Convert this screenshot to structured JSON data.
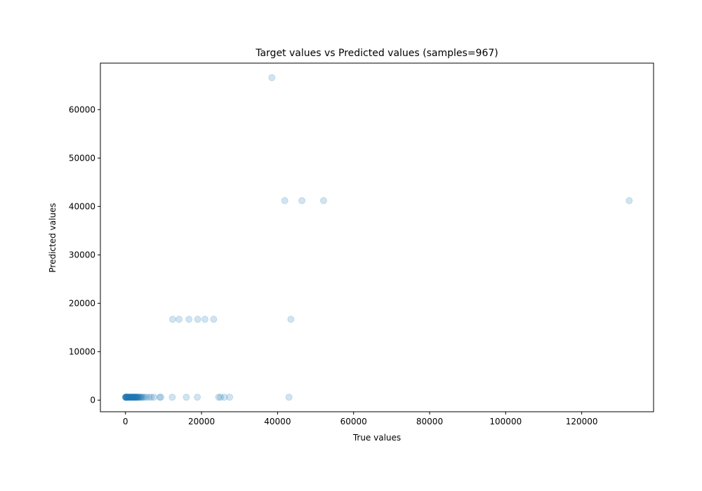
{
  "chart_data": {
    "type": "scatter",
    "title": "Target values vs Predicted values (samples=967)",
    "xlabel": "True values",
    "ylabel": "Predicted values",
    "xlim": [
      -6600,
      138900
    ],
    "ylim": [
      -2400,
      69600
    ],
    "xticks": [
      0,
      20000,
      40000,
      60000,
      80000,
      100000,
      120000
    ],
    "xtick_labels": [
      "0",
      "20000",
      "40000",
      "60000",
      "80000",
      "100000",
      "120000"
    ],
    "yticks": [
      0,
      10000,
      20000,
      30000,
      40000,
      50000,
      60000
    ],
    "ytick_labels": [
      "0",
      "10000",
      "20000",
      "30000",
      "40000",
      "50000",
      "60000"
    ],
    "grid": false,
    "marker_color": "#1f77b4",
    "marker_alpha": 0.2,
    "series": [
      {
        "x": [
          0,
          40,
          80,
          120,
          160,
          200,
          260,
          320,
          400,
          480,
          560,
          650,
          750,
          850,
          950,
          1050,
          1150,
          1250,
          1350,
          1450,
          1550,
          1650,
          1750,
          1850,
          1950,
          2050,
          2150,
          2250,
          2350,
          2450,
          2550,
          2650,
          2750,
          2850,
          2950,
          3050,
          3200,
          3350,
          3500,
          3700,
          3900,
          4100,
          4300,
          4600,
          5000,
          5500,
          6200,
          6800,
          7500,
          9000,
          9300,
          12300,
          16000,
          18900,
          24500,
          25000,
          26000,
          27400,
          43000,
          12400,
          14100,
          16700,
          19000,
          20900,
          23200,
          43500,
          41900,
          46400,
          52100,
          132500,
          38500
        ],
        "y": [
          600,
          600,
          600,
          600,
          600,
          600,
          600,
          600,
          600,
          600,
          600,
          600,
          600,
          600,
          600,
          600,
          600,
          600,
          600,
          600,
          600,
          600,
          600,
          600,
          600,
          600,
          600,
          600,
          600,
          600,
          600,
          600,
          600,
          600,
          600,
          600,
          600,
          600,
          600,
          600,
          600,
          600,
          600,
          600,
          600,
          600,
          600,
          600,
          600,
          600,
          600,
          600,
          600,
          600,
          600,
          600,
          600,
          600,
          600,
          16700,
          16700,
          16700,
          16700,
          16700,
          16700,
          16700,
          41200,
          41200,
          41200,
          41200,
          66600
        ]
      }
    ]
  }
}
